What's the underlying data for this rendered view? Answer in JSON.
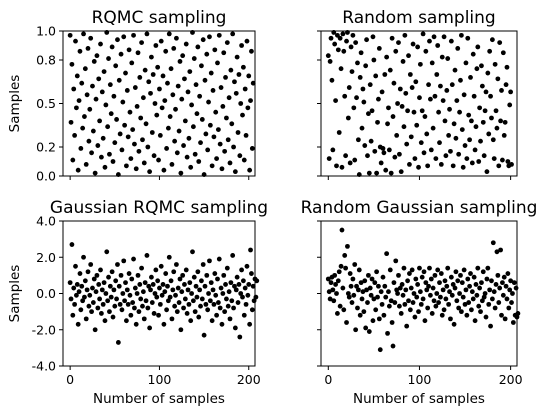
{
  "chart_data": [
    {
      "type": "scatter",
      "title": "RQMC sampling",
      "ylabel": "Samples",
      "xlabel": "",
      "xlim": [
        -8,
        207
      ],
      "ylim": [
        0.0,
        1.0
      ],
      "yticks": [
        0.0,
        0.2,
        0.5,
        0.8,
        1.0
      ],
      "yticklabels": [
        "0.0",
        "0.2",
        "0.5",
        "0.8",
        "1.0"
      ],
      "xticks": [
        0,
        100,
        200
      ],
      "xticklabels": [],
      "marker_color": "#000000",
      "y": [
        0.97,
        0.37,
        0.77,
        0.11,
        0.6,
        0.28,
        0.93,
        0.47,
        0.69,
        0.04,
        0.52,
        0.86,
        0.19,
        0.64,
        0.33,
        0.98,
        0.41,
        0.74,
        0.08,
        0.56,
        0.88,
        0.24,
        0.46,
        0.95,
        0.16,
        0.62,
        0.31,
        0.79,
        0.02,
        0.53,
        0.83,
        0.21,
        0.67,
        0.38,
        0.91,
        0.13,
        0.58,
        0.26,
        0.72,
        0.06,
        0.49,
        0.99,
        0.34,
        0.81,
        0.15,
        0.63,
        0.43,
        0.89,
        0.1,
        0.55,
        0.23,
        0.76,
        0.39,
        0.94,
        0.01,
        0.66,
        0.29,
        0.84,
        0.18,
        0.51,
        0.96,
        0.35,
        0.71,
        0.07,
        0.59,
        0.27,
        0.87,
        0.44,
        0.12,
        0.78,
        0.32,
        0.97,
        0.22,
        0.61,
        0.05,
        0.48,
        0.85,
        0.17,
        0.68,
        0.4,
        0.92,
        0.25,
        0.54,
        0.09,
        0.73,
        0.36,
        0.98,
        0.2,
        0.65,
        0.03,
        0.57,
        0.82,
        0.3,
        0.7,
        0.14,
        0.5,
        0.9,
        0.42,
        0.75,
        0.11,
        0.6,
        0.28,
        0.93,
        0.47,
        0.69,
        0.04,
        0.52,
        0.86,
        0.19,
        0.64,
        0.33,
        0.98,
        0.41,
        0.74,
        0.08,
        0.56,
        0.88,
        0.24,
        0.46,
        0.95,
        0.16,
        0.62,
        0.31,
        0.79,
        0.02,
        0.53,
        0.83,
        0.21,
        0.67,
        0.38,
        0.91,
        0.13,
        0.58,
        0.26,
        0.72,
        0.06,
        0.49,
        0.99,
        0.34,
        0.81,
        0.15,
        0.63,
        0.43,
        0.89,
        0.1,
        0.55,
        0.23,
        0.76,
        0.39,
        0.94,
        0.01,
        0.66,
        0.29,
        0.84,
        0.18,
        0.51,
        0.96,
        0.35,
        0.71,
        0.07,
        0.59,
        0.27,
        0.87,
        0.44,
        0.12,
        0.78,
        0.32,
        0.97,
        0.22,
        0.61,
        0.05,
        0.48,
        0.85,
        0.17,
        0.68,
        0.4,
        0.92,
        0.25,
        0.54,
        0.09,
        0.73,
        0.36,
        0.98,
        0.2,
        0.65,
        0.03,
        0.57,
        0.82,
        0.3,
        0.7,
        0.14,
        0.5,
        0.9,
        0.42,
        0.75,
        0.11,
        0.6,
        0.28,
        0.93,
        0.47,
        0.69,
        0.04,
        0.52,
        0.86,
        0.19,
        0.64
      ]
    },
    {
      "type": "scatter",
      "title": "Random sampling",
      "ylabel": "",
      "xlabel": "",
      "xlim": [
        -8,
        207
      ],
      "ylim": [
        0.0,
        1.0
      ],
      "yticks": [
        0.0,
        0.2,
        0.5,
        0.8,
        1.0
      ],
      "yticklabels": [],
      "xticks": [
        0,
        100,
        200
      ],
      "xticklabels": [],
      "marker_color": "#000000",
      "y": [
        0.83,
        0.12,
        0.79,
        0.95,
        0.66,
        0.18,
        0.99,
        0.91,
        0.52,
        0.07,
        0.97,
        0.87,
        0.3,
        0.95,
        0.74,
        0.06,
        0.98,
        0.86,
        0.55,
        0.14,
        0.93,
        0.99,
        0.4,
        0.61,
        0.09,
        0.89,
        0.72,
        0.97,
        0.47,
        0.11,
        0.92,
        0.54,
        0.78,
        0.25,
        0.01,
        0.68,
        0.85,
        0.33,
        0.6,
        0.51,
        0.21,
        0.76,
        0.94,
        0.14,
        0.43,
        0.02,
        0.63,
        0.24,
        0.45,
        0.96,
        0.8,
        0.17,
        0.69,
        0.02,
        0.37,
        0.53,
        0.88,
        0.2,
        0.09,
        0.58,
        0.19,
        0.16,
        0.7,
        0.04,
        0.82,
        0.36,
        0.47,
        0.18,
        0.73,
        0.02,
        0.95,
        0.41,
        0.64,
        0.13,
        0.86,
        0.28,
        0.5,
        0.92,
        0.15,
        0.6,
        0.03,
        0.48,
        0.79,
        0.34,
        0.97,
        0.57,
        0.22,
        0.45,
        0.83,
        0.08,
        0.7,
        0.27,
        0.61,
        0.91,
        0.44,
        0.12,
        0.65,
        0.35,
        0.89,
        0.06,
        0.54,
        0.77,
        0.23,
        0.45,
        0.98,
        0.16,
        0.41,
        0.86,
        0.29,
        0.07,
        0.63,
        0.93,
        0.53,
        0.18,
        0.78,
        0.33,
        0.96,
        0.55,
        0.12,
        0.7,
        0.9,
        0.44,
        0.23,
        0.62,
        0.08,
        0.82,
        0.52,
        0.96,
        0.38,
        0.14,
        0.59,
        0.81,
        0.28,
        0.46,
        0.17,
        0.93,
        0.63,
        0.07,
        0.36,
        0.73,
        0.26,
        0.52,
        0.88,
        0.15,
        0.44,
        0.66,
        0.97,
        0.32,
        0.06,
        0.56,
        0.21,
        0.78,
        0.12,
        0.95,
        0.42,
        0.25,
        0.68,
        0.38,
        0.09,
        0.84,
        0.55,
        0.18,
        0.34,
        0.74,
        0.89,
        0.1,
        0.47,
        0.24,
        0.76,
        0.62,
        0.37,
        0.14,
        0.45,
        0.58,
        0.03,
        0.71,
        0.29,
        0.86,
        0.55,
        0.4,
        0.94,
        0.25,
        0.12,
        0.77,
        0.45,
        0.33,
        0.67,
        0.07,
        0.92,
        0.38,
        0.59,
        0.11,
        0.85,
        0.28,
        0.37,
        0.63,
        0.75,
        0.1,
        0.07,
        0.49,
        0.58,
        0.08
      ]
    },
    {
      "type": "scatter",
      "title": "Gaussian RQMC sampling",
      "ylabel": "Samples",
      "xlabel": "Number of samples",
      "xlim": [
        -8,
        207
      ],
      "ylim": [
        -4.0,
        4.0
      ],
      "yticks": [
        -4.0,
        -2.0,
        0.0,
        2.0,
        4.0
      ],
      "yticklabels": [
        "-4.0",
        "-2.0",
        "0.0",
        "2.0",
        "4.0"
      ],
      "xticks": [
        0,
        100,
        200
      ],
      "xticklabels": [
        "0",
        "100",
        "200"
      ],
      "marker_color": "#000000",
      "y": [
        0.6,
        -0.3,
        2.7,
        -1.2,
        0.3,
        -0.6,
        1.5,
        -0.1,
        0.5,
        -1.7,
        0.1,
        1.1,
        -0.9,
        0.4,
        -0.4,
        2.0,
        -0.2,
        0.7,
        -1.4,
        0.2,
        1.2,
        -0.7,
        -0.1,
        1.6,
        -1.0,
        0.3,
        -0.5,
        0.8,
        -2.0,
        0.1,
        1.0,
        -0.8,
        0.5,
        -0.3,
        1.3,
        -1.1,
        0.2,
        -0.6,
        0.6,
        -1.5,
        0.0,
        2.3,
        -0.4,
        0.9,
        -1.0,
        0.4,
        -0.2,
        1.2,
        -1.3,
        0.2,
        -0.7,
        0.7,
        -0.3,
        1.6,
        -2.7,
        0.4,
        -0.6,
        1.0,
        -0.9,
        0.0,
        1.8,
        -0.4,
        0.6,
        -1.5,
        0.2,
        -0.6,
        1.1,
        -0.1,
        -1.2,
        0.8,
        -0.5,
        1.9,
        -0.8,
        0.3,
        -1.7,
        0.0,
        1.0,
        -1.0,
        0.5,
        -0.3,
        1.4,
        -0.7,
        0.1,
        -1.4,
        0.6,
        -0.4,
        2.1,
        -0.8,
        0.4,
        -1.9,
        0.2,
        0.9,
        -0.5,
        0.5,
        -1.1,
        0.0,
        1.3,
        -0.2,
        0.7,
        -1.2,
        0.3,
        -0.6,
        1.5,
        -0.1,
        0.5,
        -1.7,
        0.1,
        1.1,
        -0.9,
        0.4,
        -0.4,
        2.0,
        -0.2,
        0.7,
        -1.4,
        0.2,
        1.2,
        -0.7,
        -0.1,
        1.6,
        -1.0,
        0.3,
        -0.5,
        0.8,
        -2.0,
        0.1,
        1.0,
        -0.8,
        0.5,
        -0.3,
        1.3,
        -1.1,
        0.2,
        -0.6,
        0.6,
        -1.5,
        0.0,
        2.3,
        -0.4,
        0.9,
        -1.0,
        0.4,
        -0.2,
        1.2,
        -1.3,
        0.2,
        -0.7,
        0.7,
        -0.3,
        1.6,
        -2.3,
        0.4,
        -0.6,
        1.0,
        -0.9,
        0.0,
        1.8,
        -0.4,
        0.6,
        -1.5,
        0.2,
        -0.6,
        1.1,
        -0.1,
        -1.2,
        0.8,
        -0.5,
        1.9,
        -0.8,
        0.3,
        -1.7,
        0.0,
        1.0,
        -1.0,
        0.5,
        -0.3,
        1.4,
        -0.7,
        0.1,
        -1.4,
        0.6,
        -0.4,
        2.1,
        -0.8,
        0.4,
        -1.9,
        0.2,
        0.9,
        -0.5,
        0.5,
        -2.4,
        0.0,
        1.3,
        -0.2,
        0.7,
        -1.2,
        0.3,
        -0.6,
        1.5,
        -0.1,
        0.5,
        -1.7,
        2.4,
        1.1,
        -0.9,
        0.4,
        -0.4,
        0.8,
        -0.2,
        0.7
      ]
    },
    {
      "type": "scatter",
      "title": "Random Gaussian sampling",
      "ylabel": "",
      "xlabel": "Number of samples",
      "xlim": [
        -8,
        207
      ],
      "ylim": [
        -4.0,
        4.0
      ],
      "yticks": [
        -4.0,
        -2.0,
        0.0,
        2.0,
        4.0
      ],
      "yticklabels": [],
      "xticks": [
        0,
        100,
        200
      ],
      "xticklabels": [
        "0",
        "100",
        "200"
      ],
      "marker_color": "#000000",
      "y": [
        0.8,
        0.1,
        -0.3,
        0.6,
        0.9,
        0.2,
        -0.4,
        1.0,
        0.5,
        0.0,
        -1.1,
        0.7,
        1.2,
        -0.7,
        1.5,
        3.5,
        0.3,
        -0.9,
        2.1,
        1.4,
        -1.6,
        2.6,
        0.0,
        -0.2,
        1.1,
        0.4,
        -0.5,
        0.8,
        -0.1,
        1.6,
        -2.0,
        0.4,
        -0.8,
        0.2,
        1.3,
        -1.2,
        0.6,
        -0.3,
        0.1,
        -1.0,
        0.7,
        -1.9,
        0.2,
        -0.5,
        1.0,
        -2.1,
        0.3,
        -0.1,
        0.8,
        -1.5,
        -0.3,
        0.6,
        -0.9,
        1.2,
        -0.2,
        0.4,
        -1.4,
        -3.1,
        0.1,
        -0.6,
        0.9,
        -1.2,
        0.4,
        -0.2,
        2.2,
        -2.2,
        0.1,
        -0.7,
        1.3,
        -0.4,
        -1.6,
        -2.9,
        0.6,
        -0.5,
        1.8,
        0.2,
        0.0,
        1.0,
        -0.7,
        0.3,
        -1.1,
        0.5,
        -0.1,
        1.4,
        -0.6,
        0.2,
        -1.8,
        0.7,
        -0.4,
        1.1,
        -0.9,
        0.3,
        1.3,
        -0.5,
        0.0,
        -1.3,
        0.8,
        -0.2,
        0.5,
        -1.0,
        1.4,
        0.1,
        -0.6,
        0.9,
        -0.3,
        1.2,
        -1.5,
        0.6,
        0.2,
        -0.8,
        0.4,
        1.4,
        -0.1,
        0.8,
        -1.1,
        0.3,
        -0.4,
        1.0,
        -0.7,
        0.0,
        1.3,
        -0.5,
        0.6,
        -0.2,
        1.1,
        -1.2,
        0.2,
        -0.9,
        0.7,
        -0.3,
        0.4,
        1.4,
        -0.6,
        0.1,
        -1.4,
        0.9,
        -0.1,
        0.5,
        -1.7,
        0.3,
        1.2,
        -0.4,
        0.7,
        -0.8,
        0.0,
        1.0,
        -1.0,
        0.6,
        -0.2,
        1.3,
        -0.6,
        0.2,
        -1.2,
        0.8,
        -0.5,
        0.4,
        1.1,
        -0.9,
        0.1,
        -0.3,
        0.9,
        -1.5,
        0.5,
        -0.1,
        1.4,
        -0.7,
        0.3,
        -1.0,
        0.6,
        -0.4,
        1.2,
        -0.2,
        0.0,
        -1.3,
        0.8,
        1.4,
        -0.6,
        0.2,
        -1.8,
        0.7,
        -0.3,
        2.8,
        0.1,
        -0.8,
        0.5,
        2.3,
        1.0,
        -0.5,
        0.3,
        2.4,
        -1.2,
        0.6,
        -0.1,
        0.9,
        -1.4,
        0.4,
        -0.3,
        1.1,
        -0.8,
        0.2,
        0.7,
        -0.5,
        0.0,
        -1.6,
        0.6,
        -1.2,
        0.3,
        -1.3,
        -1.1
      ]
    }
  ]
}
